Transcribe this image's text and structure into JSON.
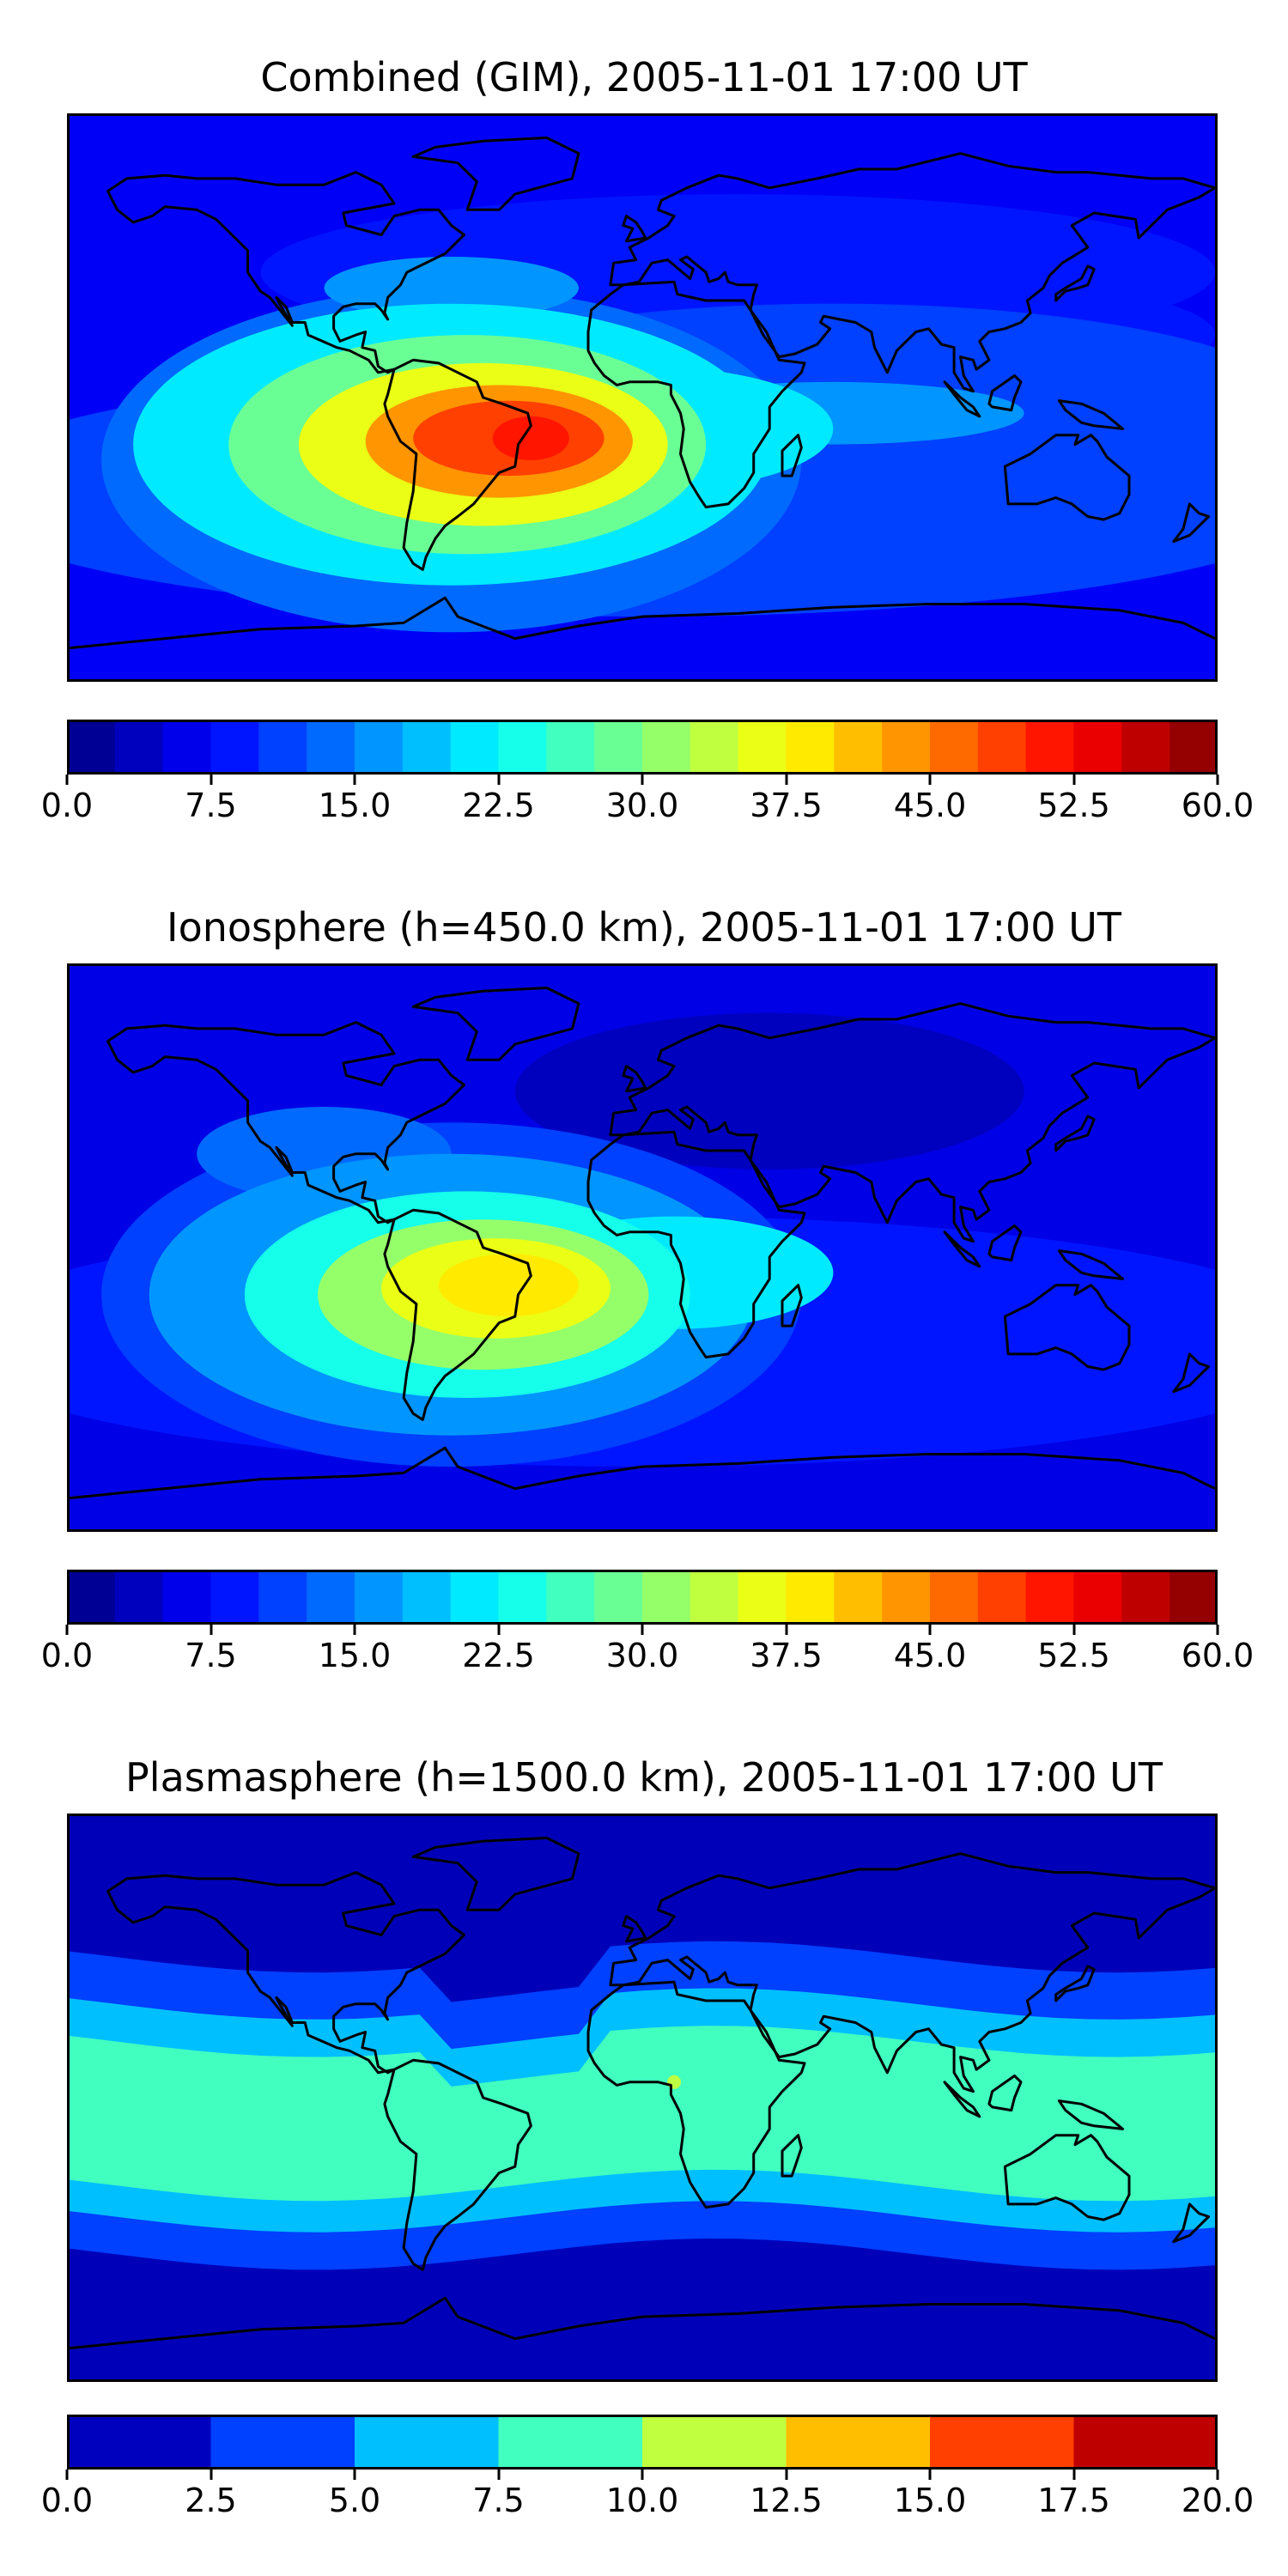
{
  "chart_data": [
    {
      "type": "heatmap",
      "title": "Combined (GIM), 2005-11-01 17:00 UT",
      "colormap": "jet",
      "levels": [
        0.0,
        2.5,
        5.0,
        7.5,
        10.0,
        12.5,
        15.0,
        17.5,
        20.0,
        22.5,
        25.0,
        27.5,
        30.0,
        32.5,
        35.0,
        37.5,
        40.0,
        42.5,
        45.0,
        47.5,
        50.0,
        52.5,
        55.0,
        57.5,
        60.0
      ],
      "colorbar_ticks": [
        "0.0",
        "7.5",
        "15.0",
        "22.5",
        "30.0",
        "37.5",
        "45.0",
        "52.5",
        "60.0"
      ],
      "colorbar_range": [
        0,
        60
      ],
      "max_region": "South America / South Atlantic",
      "max_value_approx": 50
    },
    {
      "type": "heatmap",
      "title": "Ionosphere  (h=450.0 km), 2005-11-01 17:00 UT",
      "colormap": "jet",
      "levels": [
        0.0,
        2.5,
        5.0,
        7.5,
        10.0,
        12.5,
        15.0,
        17.5,
        20.0,
        22.5,
        25.0,
        27.5,
        30.0,
        32.5,
        35.0,
        37.5,
        40.0,
        42.5,
        45.0,
        47.5,
        50.0,
        52.5,
        55.0,
        57.5,
        60.0
      ],
      "colorbar_ticks": [
        "0.0",
        "7.5",
        "15.0",
        "22.5",
        "30.0",
        "37.5",
        "45.0",
        "52.5",
        "60.0"
      ],
      "colorbar_range": [
        0,
        60
      ],
      "max_region": "South America",
      "max_value_approx": 40
    },
    {
      "type": "heatmap",
      "title": "Plasmasphere (h=1500.0 km), 2005-11-01 17:00 UT",
      "colormap": "jet",
      "levels": [
        0.0,
        2.5,
        5.0,
        7.5,
        10.0,
        12.5,
        15.0,
        17.5,
        20.0
      ],
      "colorbar_ticks": [
        "0.0",
        "2.5",
        "5.0",
        "7.5",
        "10.0",
        "12.5",
        "15.0",
        "17.5",
        "20.0"
      ],
      "colorbar_range": [
        0,
        20
      ],
      "max_region": "low latitudes (Africa / Asia)",
      "max_value_approx": 10
    }
  ]
}
